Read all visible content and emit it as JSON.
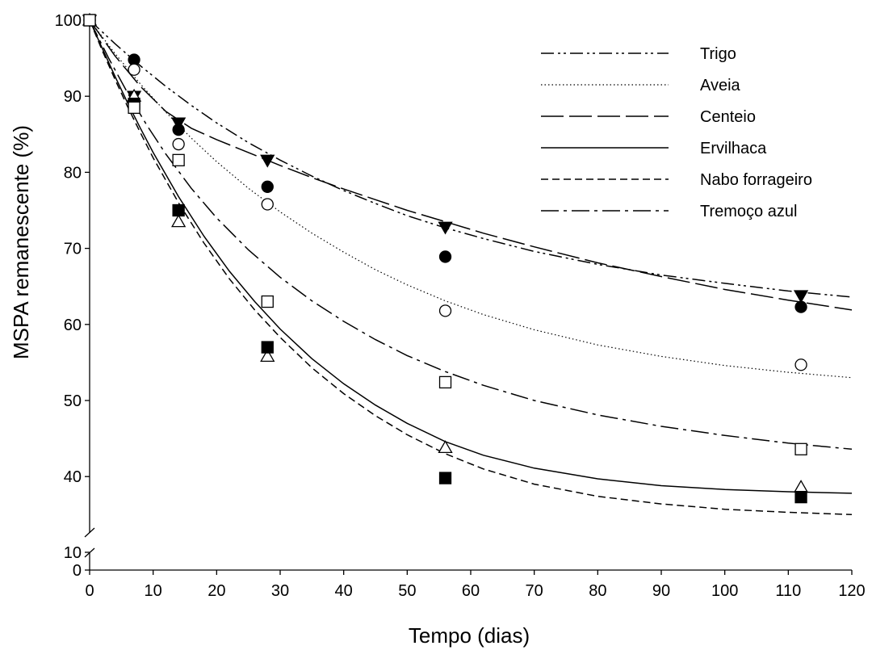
{
  "chart_data": {
    "type": "scatter",
    "title": "",
    "xlabel": "Tempo (dias)",
    "ylabel": "MSPA remanescente (%)",
    "xlim": [
      0,
      120
    ],
    "ylim": [
      0,
      100
    ],
    "y_axis_break": [
      10,
      35
    ],
    "x_ticks": [
      0,
      10,
      20,
      30,
      40,
      50,
      60,
      70,
      80,
      90,
      100,
      110,
      120
    ],
    "y_ticks": [
      0,
      10,
      40,
      50,
      60,
      70,
      80,
      90,
      100
    ],
    "grid": false,
    "legend_position": "top-right",
    "series": [
      {
        "name": "Trigo",
        "marker": "filled-circle",
        "line_style": "dash-dot-dot",
        "x": [
          0,
          7,
          14,
          28,
          56,
          112
        ],
        "values": [
          100,
          94.8,
          85.6,
          78.1,
          68.9,
          62.3
        ],
        "curve": [
          [
            0,
            100
          ],
          [
            4,
            96.9
          ],
          [
            8,
            94.0
          ],
          [
            12,
            91.3
          ],
          [
            16,
            88.8
          ],
          [
            20,
            86.5
          ],
          [
            25,
            83.9
          ],
          [
            30,
            81.6
          ],
          [
            35,
            79.5
          ],
          [
            40,
            77.6
          ],
          [
            45,
            75.9
          ],
          [
            50,
            74.3
          ],
          [
            56,
            72.7
          ],
          [
            62,
            71.3
          ],
          [
            70,
            69.6
          ],
          [
            80,
            67.9
          ],
          [
            90,
            66.5
          ],
          [
            100,
            65.4
          ],
          [
            110,
            64.4
          ],
          [
            120,
            63.6
          ]
        ]
      },
      {
        "name": "Aveia",
        "marker": "open-circle",
        "line_style": "dotted",
        "x": [
          0,
          7,
          14,
          28,
          56,
          112
        ],
        "values": [
          100,
          93.5,
          83.7,
          75.8,
          61.8,
          54.7
        ],
        "curve": [
          [
            0,
            100
          ],
          [
            4,
            95.6
          ],
          [
            8,
            91.6
          ],
          [
            12,
            87.9
          ],
          [
            16,
            84.5
          ],
          [
            20,
            81.4
          ],
          [
            25,
            77.9
          ],
          [
            30,
            74.8
          ],
          [
            35,
            72.0
          ],
          [
            40,
            69.5
          ],
          [
            45,
            67.2
          ],
          [
            50,
            65.2
          ],
          [
            56,
            63.1
          ],
          [
            62,
            61.3
          ],
          [
            70,
            59.3
          ],
          [
            80,
            57.3
          ],
          [
            90,
            55.8
          ],
          [
            100,
            54.6
          ],
          [
            110,
            53.7
          ],
          [
            120,
            53.0
          ]
        ]
      },
      {
        "name": "Centeio",
        "marker": "filled-triangle-down",
        "line_style": "long-dash",
        "x": [
          0,
          7,
          14,
          28,
          56,
          112
        ],
        "values": [
          100,
          90.0,
          86.5,
          81.6,
          72.8,
          63.8
        ],
        "curve": [
          [
            0,
            100
          ],
          [
            4,
            95.3
          ],
          [
            8,
            91.3
          ],
          [
            12,
            88.0
          ],
          [
            16,
            85.8
          ],
          [
            20,
            84.3
          ],
          [
            25,
            82.6
          ],
          [
            30,
            80.9
          ],
          [
            35,
            79.3
          ],
          [
            40,
            77.8
          ],
          [
            45,
            76.4
          ],
          [
            50,
            75.0
          ],
          [
            56,
            73.5
          ],
          [
            62,
            72.0
          ],
          [
            70,
            70.2
          ],
          [
            80,
            68.1
          ],
          [
            90,
            66.3
          ],
          [
            100,
            64.6
          ],
          [
            110,
            63.2
          ],
          [
            120,
            61.9
          ]
        ]
      },
      {
        "name": "Ervilhaca",
        "marker": "open-triangle-up",
        "line_style": "solid",
        "x": [
          0,
          7,
          14,
          28,
          56,
          112
        ],
        "values": [
          100,
          90.0,
          73.5,
          55.8,
          43.8,
          38.6
        ],
        "curve": [
          [
            0,
            100
          ],
          [
            2,
            96.3
          ],
          [
            4,
            92.6
          ],
          [
            6,
            89.1
          ],
          [
            8,
            85.8
          ],
          [
            10,
            82.6
          ],
          [
            14,
            76.8
          ],
          [
            18,
            71.6
          ],
          [
            22,
            67.0
          ],
          [
            26,
            63.0
          ],
          [
            30,
            59.4
          ],
          [
            35,
            55.5
          ],
          [
            40,
            52.2
          ],
          [
            45,
            49.4
          ],
          [
            50,
            47.0
          ],
          [
            56,
            44.6
          ],
          [
            62,
            42.8
          ],
          [
            70,
            41.1
          ],
          [
            80,
            39.7
          ],
          [
            90,
            38.8
          ],
          [
            100,
            38.3
          ],
          [
            110,
            38.0
          ],
          [
            120,
            37.8
          ]
        ]
      },
      {
        "name": "Nabo forrageiro",
        "marker": "filled-square",
        "line_style": "short-dash",
        "x": [
          0,
          7,
          14,
          28,
          56,
          112
        ],
        "values": [
          100,
          89.0,
          75.0,
          57.0,
          39.8,
          37.3
        ],
        "curve": [
          [
            0,
            100
          ],
          [
            2,
            96.0
          ],
          [
            4,
            92.2
          ],
          [
            6,
            88.6
          ],
          [
            8,
            85.2
          ],
          [
            10,
            81.9
          ],
          [
            14,
            76.0
          ],
          [
            18,
            70.7
          ],
          [
            22,
            66.0
          ],
          [
            26,
            61.9
          ],
          [
            30,
            58.3
          ],
          [
            35,
            54.3
          ],
          [
            40,
            50.9
          ],
          [
            45,
            48.0
          ],
          [
            50,
            45.5
          ],
          [
            56,
            43.0
          ],
          [
            62,
            41.0
          ],
          [
            70,
            39.0
          ],
          [
            80,
            37.4
          ],
          [
            90,
            36.4
          ],
          [
            100,
            35.7
          ],
          [
            110,
            35.3
          ],
          [
            120,
            35.0
          ]
        ]
      },
      {
        "name": "Tremoço azul",
        "marker": "open-square",
        "line_style": "dash-dot",
        "x": [
          0,
          7,
          14,
          28,
          56,
          112
        ],
        "values": [
          100,
          88.5,
          81.6,
          63.0,
          52.4,
          43.6
        ],
        "curve": [
          [
            0,
            100
          ],
          [
            3,
            95.0
          ],
          [
            6,
            90.4
          ],
          [
            9,
            86.2
          ],
          [
            12,
            82.4
          ],
          [
            16,
            77.9
          ],
          [
            20,
            74.0
          ],
          [
            25,
            69.8
          ],
          [
            30,
            66.2
          ],
          [
            35,
            63.1
          ],
          [
            40,
            60.4
          ],
          [
            45,
            58.0
          ],
          [
            50,
            55.9
          ],
          [
            56,
            53.8
          ],
          [
            62,
            52.0
          ],
          [
            70,
            50.0
          ],
          [
            80,
            48.1
          ],
          [
            90,
            46.6
          ],
          [
            100,
            45.4
          ],
          [
            110,
            44.4
          ],
          [
            120,
            43.6
          ]
        ]
      }
    ]
  }
}
